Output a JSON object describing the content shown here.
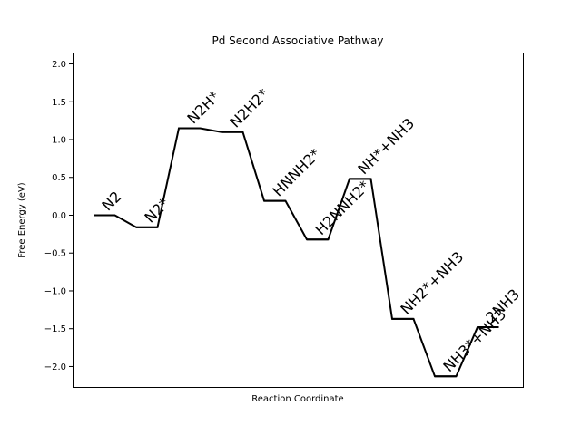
{
  "chart_data": {
    "type": "line",
    "title": "Pd Second Associative Pathway",
    "xlabel": "Reaction Coordinate",
    "ylabel": "Free Energy (eV)",
    "ylim": [
      -2.27,
      2.15
    ],
    "yticks": [
      -2.0,
      -1.5,
      -1.0,
      -0.5,
      0.0,
      0.5,
      1.0,
      1.5,
      2.0
    ],
    "ytick_labels": [
      "−2.0",
      "−1.5",
      "−1.0",
      "−0.5",
      "0.0",
      "0.5",
      "1.0",
      "1.5",
      "2.0"
    ],
    "grid": false,
    "line_color": "#000000",
    "label_rotation_deg": 45,
    "series": [
      {
        "steps": [
          {
            "label": "N2",
            "value": 0.0
          },
          {
            "label": "N2*",
            "value": -0.16
          },
          {
            "label": "N2H*",
            "value": 1.15
          },
          {
            "label": "N2H2*",
            "value": 1.1
          },
          {
            "label": "HNNH2*",
            "value": 0.19
          },
          {
            "label": "H2NNH2*",
            "value": -0.32
          },
          {
            "label": "NH*+NH3",
            "value": 0.48
          },
          {
            "label": "NH2*+NH3",
            "value": -1.37
          },
          {
            "label": "NH3*+NH3",
            "value": -2.13
          },
          {
            "label": "2NH3",
            "value": -1.48
          }
        ]
      }
    ]
  }
}
